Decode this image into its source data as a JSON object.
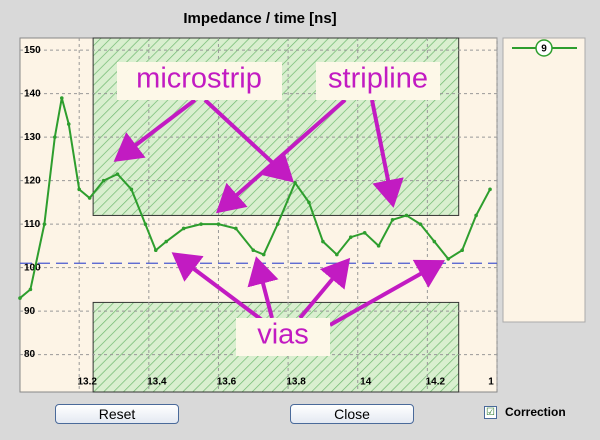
{
  "chart_data": {
    "type": "line",
    "title": "Impedance  / time [ns]",
    "x": [
      13.03,
      13.06,
      13.1,
      13.13,
      13.15,
      13.17,
      13.2,
      13.23,
      13.27,
      13.31,
      13.35,
      13.39,
      13.42,
      13.45,
      13.5,
      13.55,
      13.6,
      13.65,
      13.7,
      13.73,
      13.77,
      13.82,
      13.86,
      13.9,
      13.94,
      13.98,
      14.02,
      14.06,
      14.1,
      14.14,
      14.18,
      14.22,
      14.26,
      14.3,
      14.34,
      14.38
    ],
    "series": [
      {
        "name": "9",
        "color": "#2e9e2e",
        "values": [
          93,
          95,
          110,
          130,
          139,
          133,
          118,
          116,
          120,
          121.5,
          118,
          110,
          104,
          106,
          109,
          110,
          110,
          109,
          104,
          103,
          110,
          119.5,
          115,
          106,
          103,
          107,
          108,
          105,
          111,
          112,
          110,
          106,
          102,
          104,
          112,
          118
        ]
      }
    ],
    "xlim": [
      13.03,
      14.4
    ],
    "ylim": [
      71.4,
      152.8
    ],
    "xticks": [
      13.2,
      13.4,
      13.6,
      13.8,
      14.0,
      14.2,
      {
        "value": 14.4,
        "label": "1"
      }
    ],
    "yticks": [
      80,
      90,
      100,
      110,
      120,
      130,
      140,
      150
    ],
    "grid": true,
    "reference": 101,
    "upper_limit": 112,
    "lower_limit": 92,
    "limit_x": [
      13.24,
      14.29
    ],
    "annotations": [
      "microstrip",
      "stripline",
      "vias"
    ]
  },
  "buttons": [
    "Reset",
    "Close"
  ],
  "checkbox": {
    "label": "Correction",
    "checked": "☑"
  }
}
